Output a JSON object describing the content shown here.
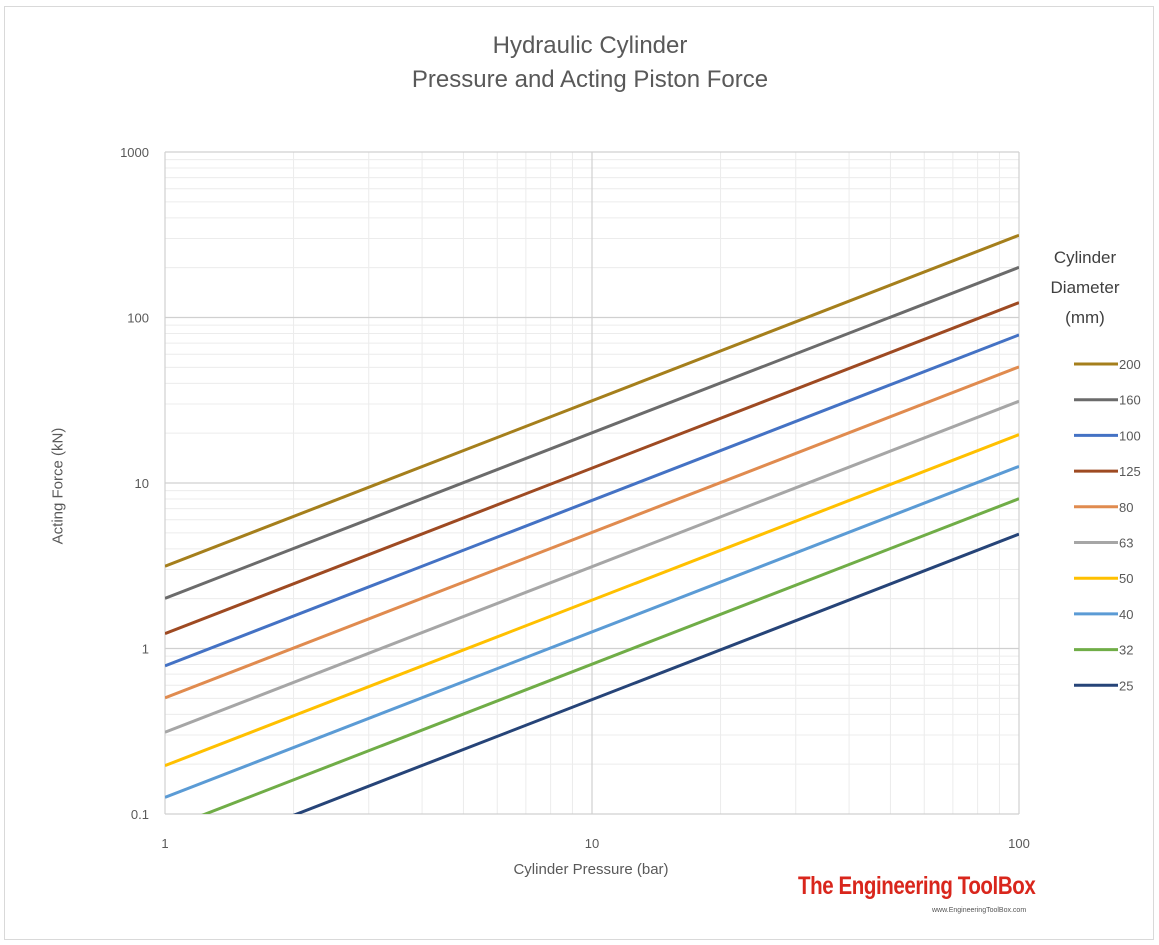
{
  "chart_data": {
    "type": "line",
    "title": "Hydraulic Cylinder",
    "subtitle": "Pressure and Acting Piston Force",
    "xlabel": "Cylinder Pressure (bar)",
    "ylabel": "Acting Force (kN)",
    "x_scale": "log",
    "y_scale": "log",
    "xlim": [
      1,
      100
    ],
    "ylim": [
      0.1,
      1000
    ],
    "x_ticks": [
      "1",
      "10",
      "100"
    ],
    "y_ticks": [
      "0.1",
      "1",
      "10",
      "100",
      "1000"
    ],
    "grid": true,
    "legend_title": [
      "Cylinder",
      "Diameter",
      "(mm)"
    ],
    "legend_position": "right",
    "series": [
      {
        "name": "200",
        "color": "#a57f1c",
        "points": [
          [
            1,
            3.14
          ],
          [
            100,
            314
          ]
        ]
      },
      {
        "name": "160",
        "color": "#6b6b6b",
        "points": [
          [
            1,
            2.01
          ],
          [
            100,
            201
          ]
        ]
      },
      {
        "name": "100",
        "color": "#4472c4",
        "points": [
          [
            1,
            0.785
          ],
          [
            100,
            78.5
          ]
        ]
      },
      {
        "name": "125",
        "color": "#9e4a22",
        "points": [
          [
            1,
            1.23
          ],
          [
            100,
            123
          ]
        ]
      },
      {
        "name": "80",
        "color": "#e08b4f",
        "points": [
          [
            1,
            0.503
          ],
          [
            100,
            50.3
          ]
        ]
      },
      {
        "name": "63",
        "color": "#a6a6a6",
        "points": [
          [
            1,
            0.312
          ],
          [
            100,
            31.2
          ]
        ]
      },
      {
        "name": "50",
        "color": "#ffc000",
        "points": [
          [
            1,
            0.196
          ],
          [
            100,
            19.6
          ]
        ]
      },
      {
        "name": "40",
        "color": "#5b9bd5",
        "points": [
          [
            1,
            0.126
          ],
          [
            100,
            12.6
          ]
        ]
      },
      {
        "name": "32",
        "color": "#70ad47",
        "points": [
          [
            1,
            0.0804
          ],
          [
            100,
            8.04
          ]
        ]
      },
      {
        "name": "25",
        "color": "#264478",
        "points": [
          [
            1,
            0.0491
          ],
          [
            100,
            4.91
          ]
        ]
      }
    ]
  },
  "watermark": {
    "brand": "The Engineering ToolBox",
    "url": "www.EngineeringToolBox.com"
  }
}
